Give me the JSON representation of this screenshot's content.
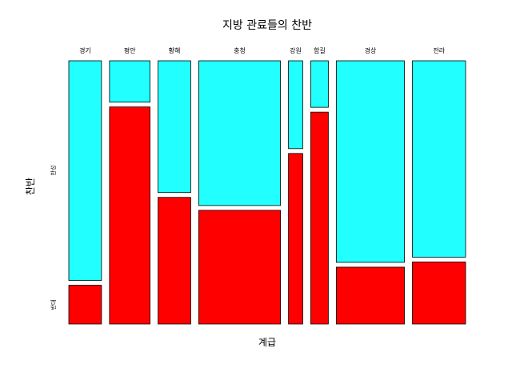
{
  "chart_data": {
    "type": "mosaic",
    "title": "지방 관료들의 찬반",
    "xlabel": "계급",
    "ylabel": "찬반",
    "categories": [
      "경기",
      "평안",
      "황해",
      "충청",
      "강원",
      "함길",
      "경상",
      "전라"
    ],
    "x_proportions": [
      0.158,
      0.196,
      0.158,
      0.395,
      0.069,
      0.085,
      0.329,
      0.257
    ],
    "y_levels": [
      "반대",
      "찬성"
    ],
    "oppose_fraction": [
      0.15,
      0.84,
      0.49,
      0.44,
      0.66,
      0.82,
      0.22,
      0.24
    ],
    "colors": {
      "반대": "#ff0000",
      "찬성": "#22ffff"
    },
    "legend": "none",
    "grid": false
  }
}
